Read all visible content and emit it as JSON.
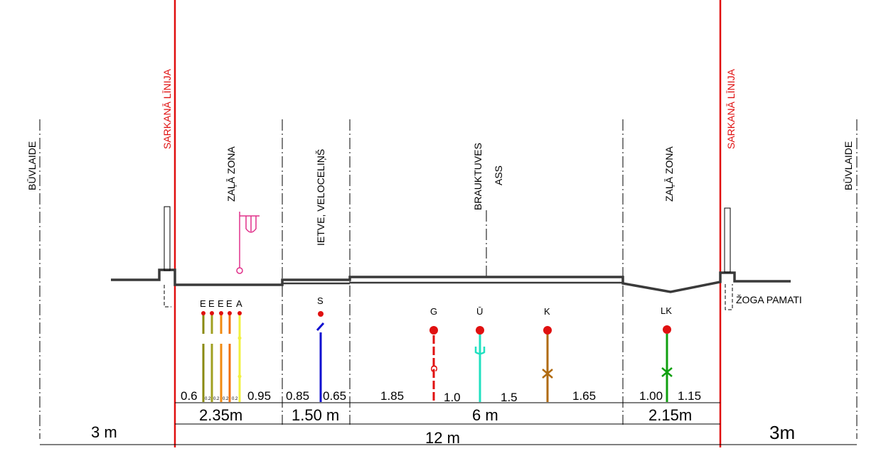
{
  "zones": {
    "buvlaide_left": "BŪVLAIDE",
    "buvlaide_right": "BŪVLAIDE",
    "red_line_left": "SARKANĀ LĪNIJA",
    "red_line_right": "SARKANĀ LĪNIJA",
    "green_zone_left": "ZAĻĀ ZONA",
    "green_zone_right": "ZAĻĀ ZONA",
    "sidewalk": "IETVE, VELOCELIŅŠ",
    "road": "BRAUKTUVES",
    "axis": "ASS",
    "fence_foundation": "ŽOGA PAMATI"
  },
  "utilities": {
    "e1": "E",
    "e2": "E",
    "e3": "E",
    "e4": "E",
    "a": "A",
    "s": "S",
    "g": "G",
    "u": "Ū",
    "k": "K",
    "lk": "LK"
  },
  "dimensions": {
    "d_0_6": "0.6",
    "d_0_2a": "0.2",
    "d_0_2b": "0.2",
    "d_0_2c": "0.2",
    "d_0_2d": "0.2",
    "d_0_95": "0.95",
    "d_0_85": "0.85",
    "d_0_65": "0.65",
    "d_1_85": "1.85",
    "d_1_0": "1.0",
    "d_1_5": "1.5",
    "d_1_65": "1.65",
    "d_1_00": "1.00",
    "d_1_15": "1.15",
    "d_2_35m": "2.35m",
    "d_1_50m": "1.50 m",
    "d_6m": "6 m",
    "d_2_15m": "2.15m",
    "d_3m_left": "3 m",
    "d_12m": "12 m",
    "d_3m_right": "3m"
  },
  "colors": {
    "red_line": "#e01010",
    "ground": "#3a3a3a",
    "cable_olive": "#8a8a10",
    "cable_orange": "#f08a10",
    "cable_yellow": "#f0f040",
    "sewer_blue": "#1010d0",
    "gas_red": "#e01010",
    "water_cyan": "#20e0c0",
    "sewage_brown": "#b06a10",
    "storm_green": "#10a010",
    "lamp_magenta": "#e0308a"
  }
}
